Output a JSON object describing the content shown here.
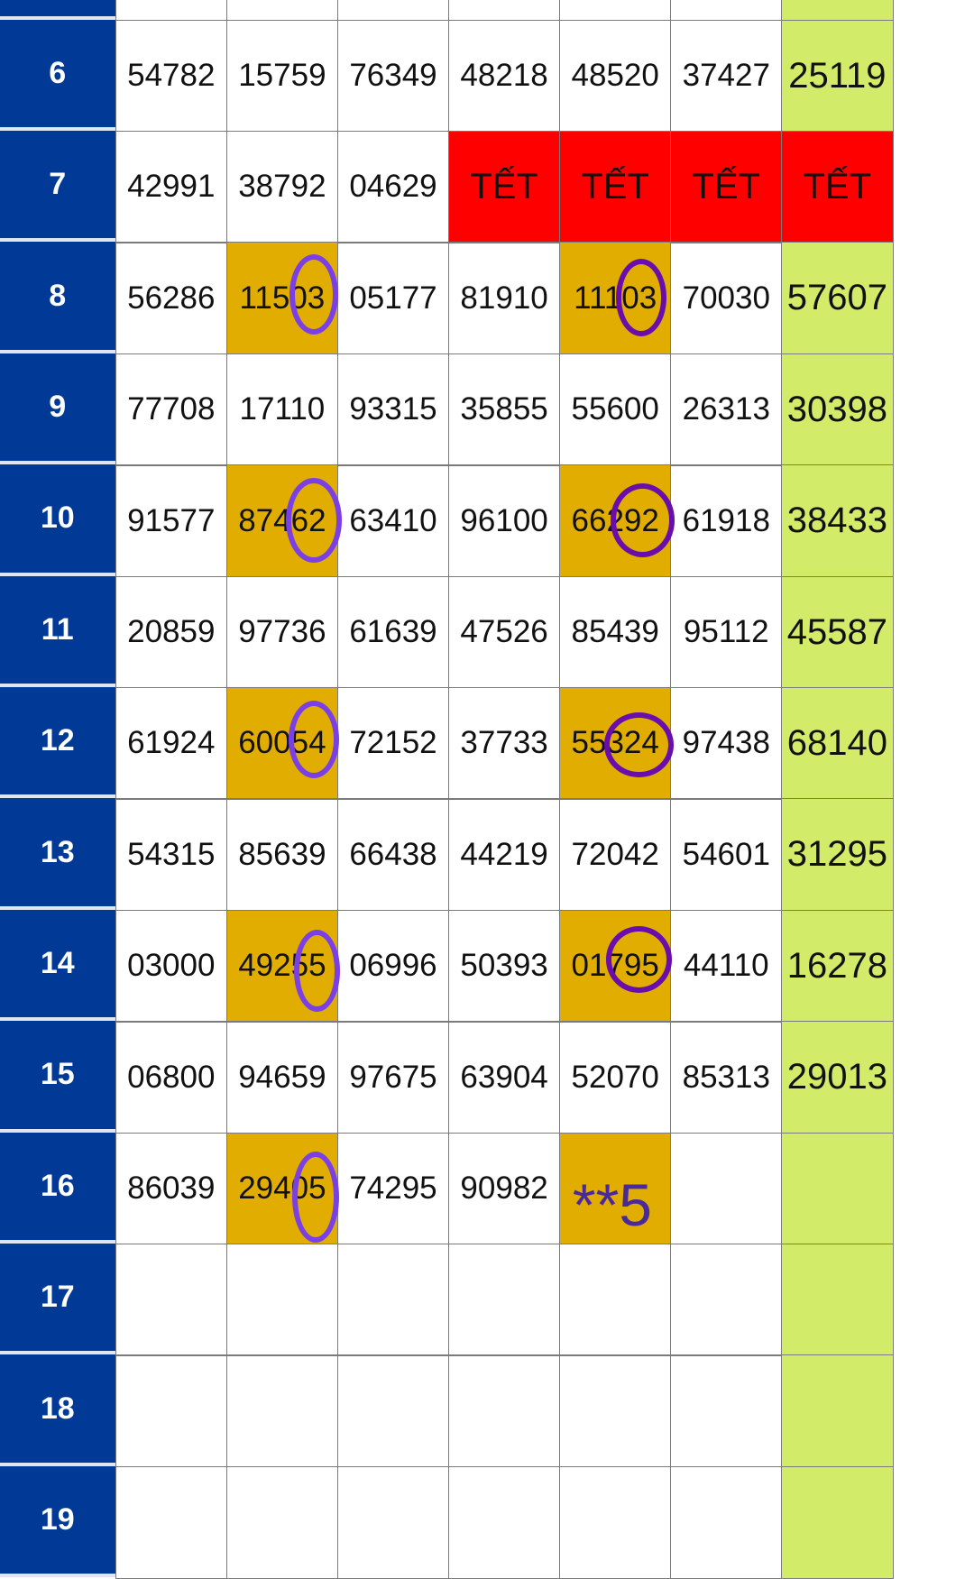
{
  "rows": [
    {
      "label": null,
      "cells": [
        null,
        null,
        null,
        null,
        null,
        null,
        null
      ]
    },
    {
      "label": "6",
      "cells": [
        "54782",
        "15759",
        "76349",
        "48218",
        "48520",
        "37427",
        "25119"
      ]
    },
    {
      "label": "7",
      "cells": [
        "42991",
        "38792",
        "04629",
        "TẾT",
        "TẾT",
        "TẾT",
        "TẾT"
      ]
    },
    {
      "label": "8",
      "cells": [
        "56286",
        "11503",
        "05177",
        "81910",
        "11103",
        "70030",
        "57607"
      ]
    },
    {
      "label": "9",
      "cells": [
        "77708",
        "17110",
        "93315",
        "35855",
        "55600",
        "26313",
        "30398"
      ]
    },
    {
      "label": "10",
      "cells": [
        "91577",
        "87462",
        "63410",
        "96100",
        "66292",
        "61918",
        "38433"
      ]
    },
    {
      "label": "11",
      "cells": [
        "20859",
        "97736",
        "61639",
        "47526",
        "85439",
        "95112",
        "45587"
      ]
    },
    {
      "label": "12",
      "cells": [
        "61924",
        "60054",
        "72152",
        "37733",
        "55324",
        "97438",
        "68140"
      ]
    },
    {
      "label": "13",
      "cells": [
        "54315",
        "85639",
        "66438",
        "44219",
        "72042",
        "54601",
        "31295"
      ]
    },
    {
      "label": "14",
      "cells": [
        "03000",
        "49255",
        "06996",
        "50393",
        "01795",
        "44110",
        "16278"
      ]
    },
    {
      "label": "15",
      "cells": [
        "06800",
        "94659",
        "97675",
        "63904",
        "52070",
        "85313",
        "29013"
      ]
    },
    {
      "label": "16",
      "cells": [
        "86039",
        "29405",
        "74295",
        "90982",
        "**5",
        null,
        null
      ]
    },
    {
      "label": "17",
      "cells": [
        null,
        null,
        null,
        null,
        null,
        null,
        null
      ]
    },
    {
      "label": "18",
      "cells": [
        null,
        null,
        null,
        null,
        null,
        null,
        null
      ]
    },
    {
      "label": "19",
      "cells": [
        null,
        null,
        null,
        null,
        null,
        null,
        null
      ]
    }
  ]
}
